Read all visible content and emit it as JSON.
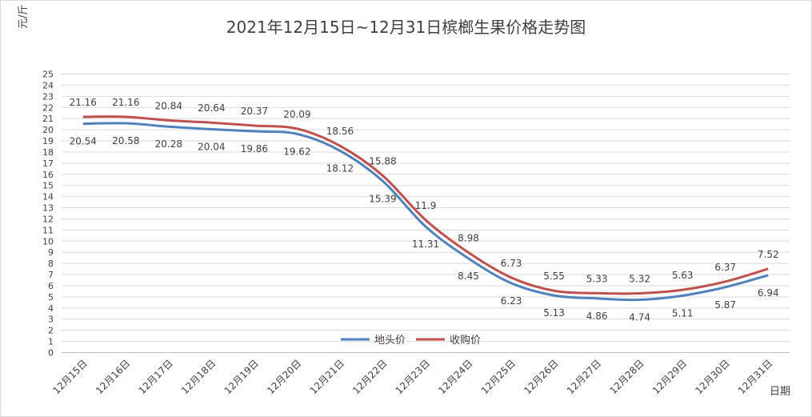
{
  "chart_data": {
    "type": "line",
    "title": "2021年12月15日~12月31日槟榔生果价格走势图",
    "ylabel": "元/斤",
    "xlabel": "日期",
    "ylim": [
      0,
      25
    ],
    "ytick_step": 1,
    "grid": true,
    "legend_position": "bottom-center",
    "categories": [
      "12月15日",
      "12月16日",
      "12月17日",
      "12月18日",
      "12月19日",
      "12月20日",
      "12月21日",
      "12月22日",
      "12月23日",
      "12月24日",
      "12月25日",
      "12月26日",
      "12月27日",
      "12月28日",
      "12月29日",
      "12月30日",
      "12月31日"
    ],
    "series": [
      {
        "name": "地头价",
        "color": "#4f81bd",
        "label_position": "below",
        "values": [
          20.54,
          20.58,
          20.28,
          20.04,
          19.86,
          19.62,
          18.12,
          15.39,
          11.31,
          8.45,
          6.23,
          5.13,
          4.86,
          4.74,
          5.11,
          5.87,
          6.94
        ]
      },
      {
        "name": "收购价",
        "color": "#c0504d",
        "label_position": "above",
        "values": [
          21.16,
          21.16,
          20.84,
          20.64,
          20.37,
          20.09,
          18.56,
          15.88,
          11.9,
          8.98,
          6.73,
          5.55,
          5.33,
          5.32,
          5.63,
          6.37,
          7.52
        ]
      }
    ]
  }
}
